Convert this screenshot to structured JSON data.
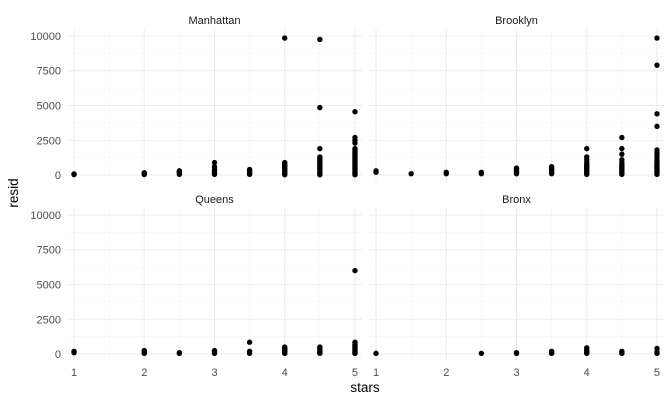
{
  "chart_data": {
    "type": "scatter",
    "xlabel": "stars",
    "ylabel": "resid",
    "xlim": [
      0.9,
      5.1
    ],
    "ylim": [
      -500,
      10500
    ],
    "x_ticks": [
      "1",
      "2",
      "3",
      "4",
      "5"
    ],
    "y_ticks": [
      "0",
      "2500",
      "5000",
      "7500",
      "10000"
    ],
    "grid": true,
    "panels": [
      {
        "title": "Manhattan",
        "points": [
          [
            1,
            30
          ],
          [
            1,
            80
          ],
          [
            2,
            40
          ],
          [
            2,
            100
          ],
          [
            2,
            170
          ],
          [
            2.5,
            50
          ],
          [
            2.5,
            150
          ],
          [
            2.5,
            250
          ],
          [
            2.5,
            300
          ],
          [
            3,
            50
          ],
          [
            3,
            150
          ],
          [
            3,
            250
          ],
          [
            3,
            400
          ],
          [
            3,
            600
          ],
          [
            3,
            900
          ],
          [
            3.5,
            50
          ],
          [
            3.5,
            120
          ],
          [
            3.5,
            200
          ],
          [
            3.5,
            300
          ],
          [
            3.5,
            400
          ],
          [
            4,
            20
          ],
          [
            4,
            100
          ],
          [
            4,
            200
          ],
          [
            4,
            300
          ],
          [
            4,
            400
          ],
          [
            4,
            500
          ],
          [
            4,
            600
          ],
          [
            4,
            700
          ],
          [
            4,
            800
          ],
          [
            4,
            900
          ],
          [
            4,
            9850
          ],
          [
            4.5,
            20
          ],
          [
            4.5,
            100
          ],
          [
            4.5,
            200
          ],
          [
            4.5,
            300
          ],
          [
            4.5,
            400
          ],
          [
            4.5,
            500
          ],
          [
            4.5,
            600
          ],
          [
            4.5,
            700
          ],
          [
            4.5,
            800
          ],
          [
            4.5,
            900
          ],
          [
            4.5,
            1000
          ],
          [
            4.5,
            1100
          ],
          [
            4.5,
            1200
          ],
          [
            4.5,
            1300
          ],
          [
            4.5,
            1900
          ],
          [
            4.5,
            4850
          ],
          [
            4.5,
            9750
          ],
          [
            5,
            20
          ],
          [
            5,
            100
          ],
          [
            5,
            200
          ],
          [
            5,
            300
          ],
          [
            5,
            400
          ],
          [
            5,
            500
          ],
          [
            5,
            600
          ],
          [
            5,
            700
          ],
          [
            5,
            800
          ],
          [
            5,
            900
          ],
          [
            5,
            1000
          ],
          [
            5,
            1100
          ],
          [
            5,
            1200
          ],
          [
            5,
            1300
          ],
          [
            5,
            1400
          ],
          [
            5,
            1500
          ],
          [
            5,
            1600
          ],
          [
            5,
            1700
          ],
          [
            5,
            1800
          ],
          [
            5,
            1900
          ],
          [
            5,
            2300
          ],
          [
            5,
            2500
          ],
          [
            5,
            2700
          ],
          [
            5,
            4550
          ]
        ]
      },
      {
        "title": "Brooklyn",
        "points": [
          [
            1,
            200
          ],
          [
            1,
            300
          ],
          [
            1.5,
            100
          ],
          [
            2,
            100
          ],
          [
            2,
            200
          ],
          [
            2.5,
            100
          ],
          [
            2.5,
            200
          ],
          [
            3,
            100
          ],
          [
            3,
            200
          ],
          [
            3,
            300
          ],
          [
            3,
            400
          ],
          [
            3,
            500
          ],
          [
            3.5,
            100
          ],
          [
            3.5,
            200
          ],
          [
            3.5,
            300
          ],
          [
            3.5,
            400
          ],
          [
            3.5,
            500
          ],
          [
            3.5,
            600
          ],
          [
            4,
            50
          ],
          [
            4,
            150
          ],
          [
            4,
            250
          ],
          [
            4,
            350
          ],
          [
            4,
            450
          ],
          [
            4,
            550
          ],
          [
            4,
            650
          ],
          [
            4,
            750
          ],
          [
            4,
            900
          ],
          [
            4,
            1100
          ],
          [
            4,
            1300
          ],
          [
            4,
            1900
          ],
          [
            4.5,
            50
          ],
          [
            4.5,
            150
          ],
          [
            4.5,
            250
          ],
          [
            4.5,
            350
          ],
          [
            4.5,
            450
          ],
          [
            4.5,
            550
          ],
          [
            4.5,
            650
          ],
          [
            4.5,
            750
          ],
          [
            4.5,
            900
          ],
          [
            4.5,
            1100
          ],
          [
            4.5,
            1500
          ],
          [
            4.5,
            1900
          ],
          [
            4.5,
            2700
          ],
          [
            5,
            50
          ],
          [
            5,
            150
          ],
          [
            5,
            250
          ],
          [
            5,
            350
          ],
          [
            5,
            450
          ],
          [
            5,
            550
          ],
          [
            5,
            650
          ],
          [
            5,
            750
          ],
          [
            5,
            850
          ],
          [
            5,
            1000
          ],
          [
            5,
            1200
          ],
          [
            5,
            1400
          ],
          [
            5,
            1600
          ],
          [
            5,
            1800
          ],
          [
            5,
            3500
          ],
          [
            5,
            4400
          ],
          [
            5,
            7900
          ],
          [
            5,
            9850
          ]
        ]
      },
      {
        "title": "Queens",
        "points": [
          [
            1,
            100
          ],
          [
            1,
            200
          ],
          [
            2,
            50
          ],
          [
            2,
            150
          ],
          [
            2,
            250
          ],
          [
            2.5,
            50
          ],
          [
            2.5,
            100
          ],
          [
            3,
            50
          ],
          [
            3,
            150
          ],
          [
            3,
            250
          ],
          [
            3.5,
            50
          ],
          [
            3.5,
            200
          ],
          [
            3.5,
            850
          ],
          [
            4,
            50
          ],
          [
            4,
            100
          ],
          [
            4,
            150
          ],
          [
            4,
            200
          ],
          [
            4,
            250
          ],
          [
            4,
            300
          ],
          [
            4,
            400
          ],
          [
            4,
            500
          ],
          [
            4.5,
            50
          ],
          [
            4.5,
            100
          ],
          [
            4.5,
            200
          ],
          [
            4.5,
            300
          ],
          [
            4.5,
            400
          ],
          [
            4.5,
            500
          ],
          [
            5,
            50
          ],
          [
            5,
            100
          ],
          [
            5,
            150
          ],
          [
            5,
            200
          ],
          [
            5,
            300
          ],
          [
            5,
            400
          ],
          [
            5,
            500
          ],
          [
            5,
            600
          ],
          [
            5,
            700
          ],
          [
            5,
            850
          ],
          [
            5,
            6000
          ]
        ]
      },
      {
        "title": "Bronx",
        "points": [
          [
            1,
            50
          ],
          [
            2.5,
            50
          ],
          [
            3,
            50
          ],
          [
            3,
            100
          ],
          [
            3.5,
            50
          ],
          [
            3.5,
            100
          ],
          [
            3.5,
            200
          ],
          [
            4,
            50
          ],
          [
            4,
            100
          ],
          [
            4,
            200
          ],
          [
            4,
            300
          ],
          [
            4,
            450
          ],
          [
            4.5,
            50
          ],
          [
            4.5,
            100
          ],
          [
            4.5,
            200
          ],
          [
            5,
            50
          ],
          [
            5,
            150
          ],
          [
            5,
            400
          ]
        ]
      }
    ]
  }
}
